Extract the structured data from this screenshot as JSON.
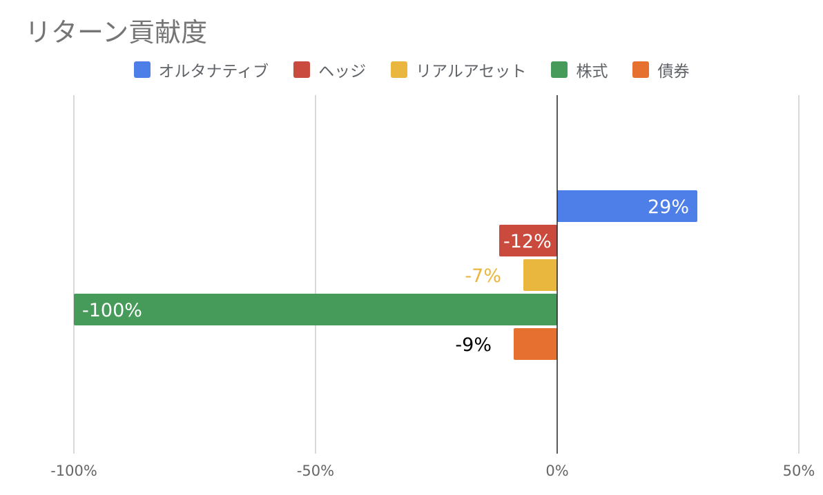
{
  "chart_data": {
    "type": "bar",
    "orientation": "horizontal",
    "title": "リターン貢献度",
    "categories": [
      "オルタナティブ",
      "ヘッジ",
      "リアルアセット",
      "株式",
      "債券"
    ],
    "series": [
      {
        "name": "オルタナティブ",
        "value": 29,
        "label": "29%",
        "color": "#4e7fe8",
        "label_color": "#ffffff"
      },
      {
        "name": "ヘッジ",
        "value": -12,
        "label": "-12%",
        "color": "#cb4a3e",
        "label_color": "#ffffff"
      },
      {
        "name": "リアルアセット",
        "value": -7,
        "label": "-7%",
        "color": "#e9b73e",
        "label_color": "#e9b73e"
      },
      {
        "name": "株式",
        "value": -100,
        "label": "-100%",
        "color": "#469a5a",
        "label_color": "#ffffff"
      },
      {
        "name": "債券",
        "value": -9,
        "label": "-9%",
        "color": "#e6702f",
        "label_color": "#000000"
      }
    ],
    "xlim": [
      -100,
      50
    ],
    "xticks": [
      {
        "value": -100,
        "label": "-100%"
      },
      {
        "value": -50,
        "label": "-50%"
      },
      {
        "value": 0,
        "label": "0%"
      },
      {
        "value": 50,
        "label": "50%"
      }
    ],
    "grid": true,
    "legend_position": "top"
  }
}
